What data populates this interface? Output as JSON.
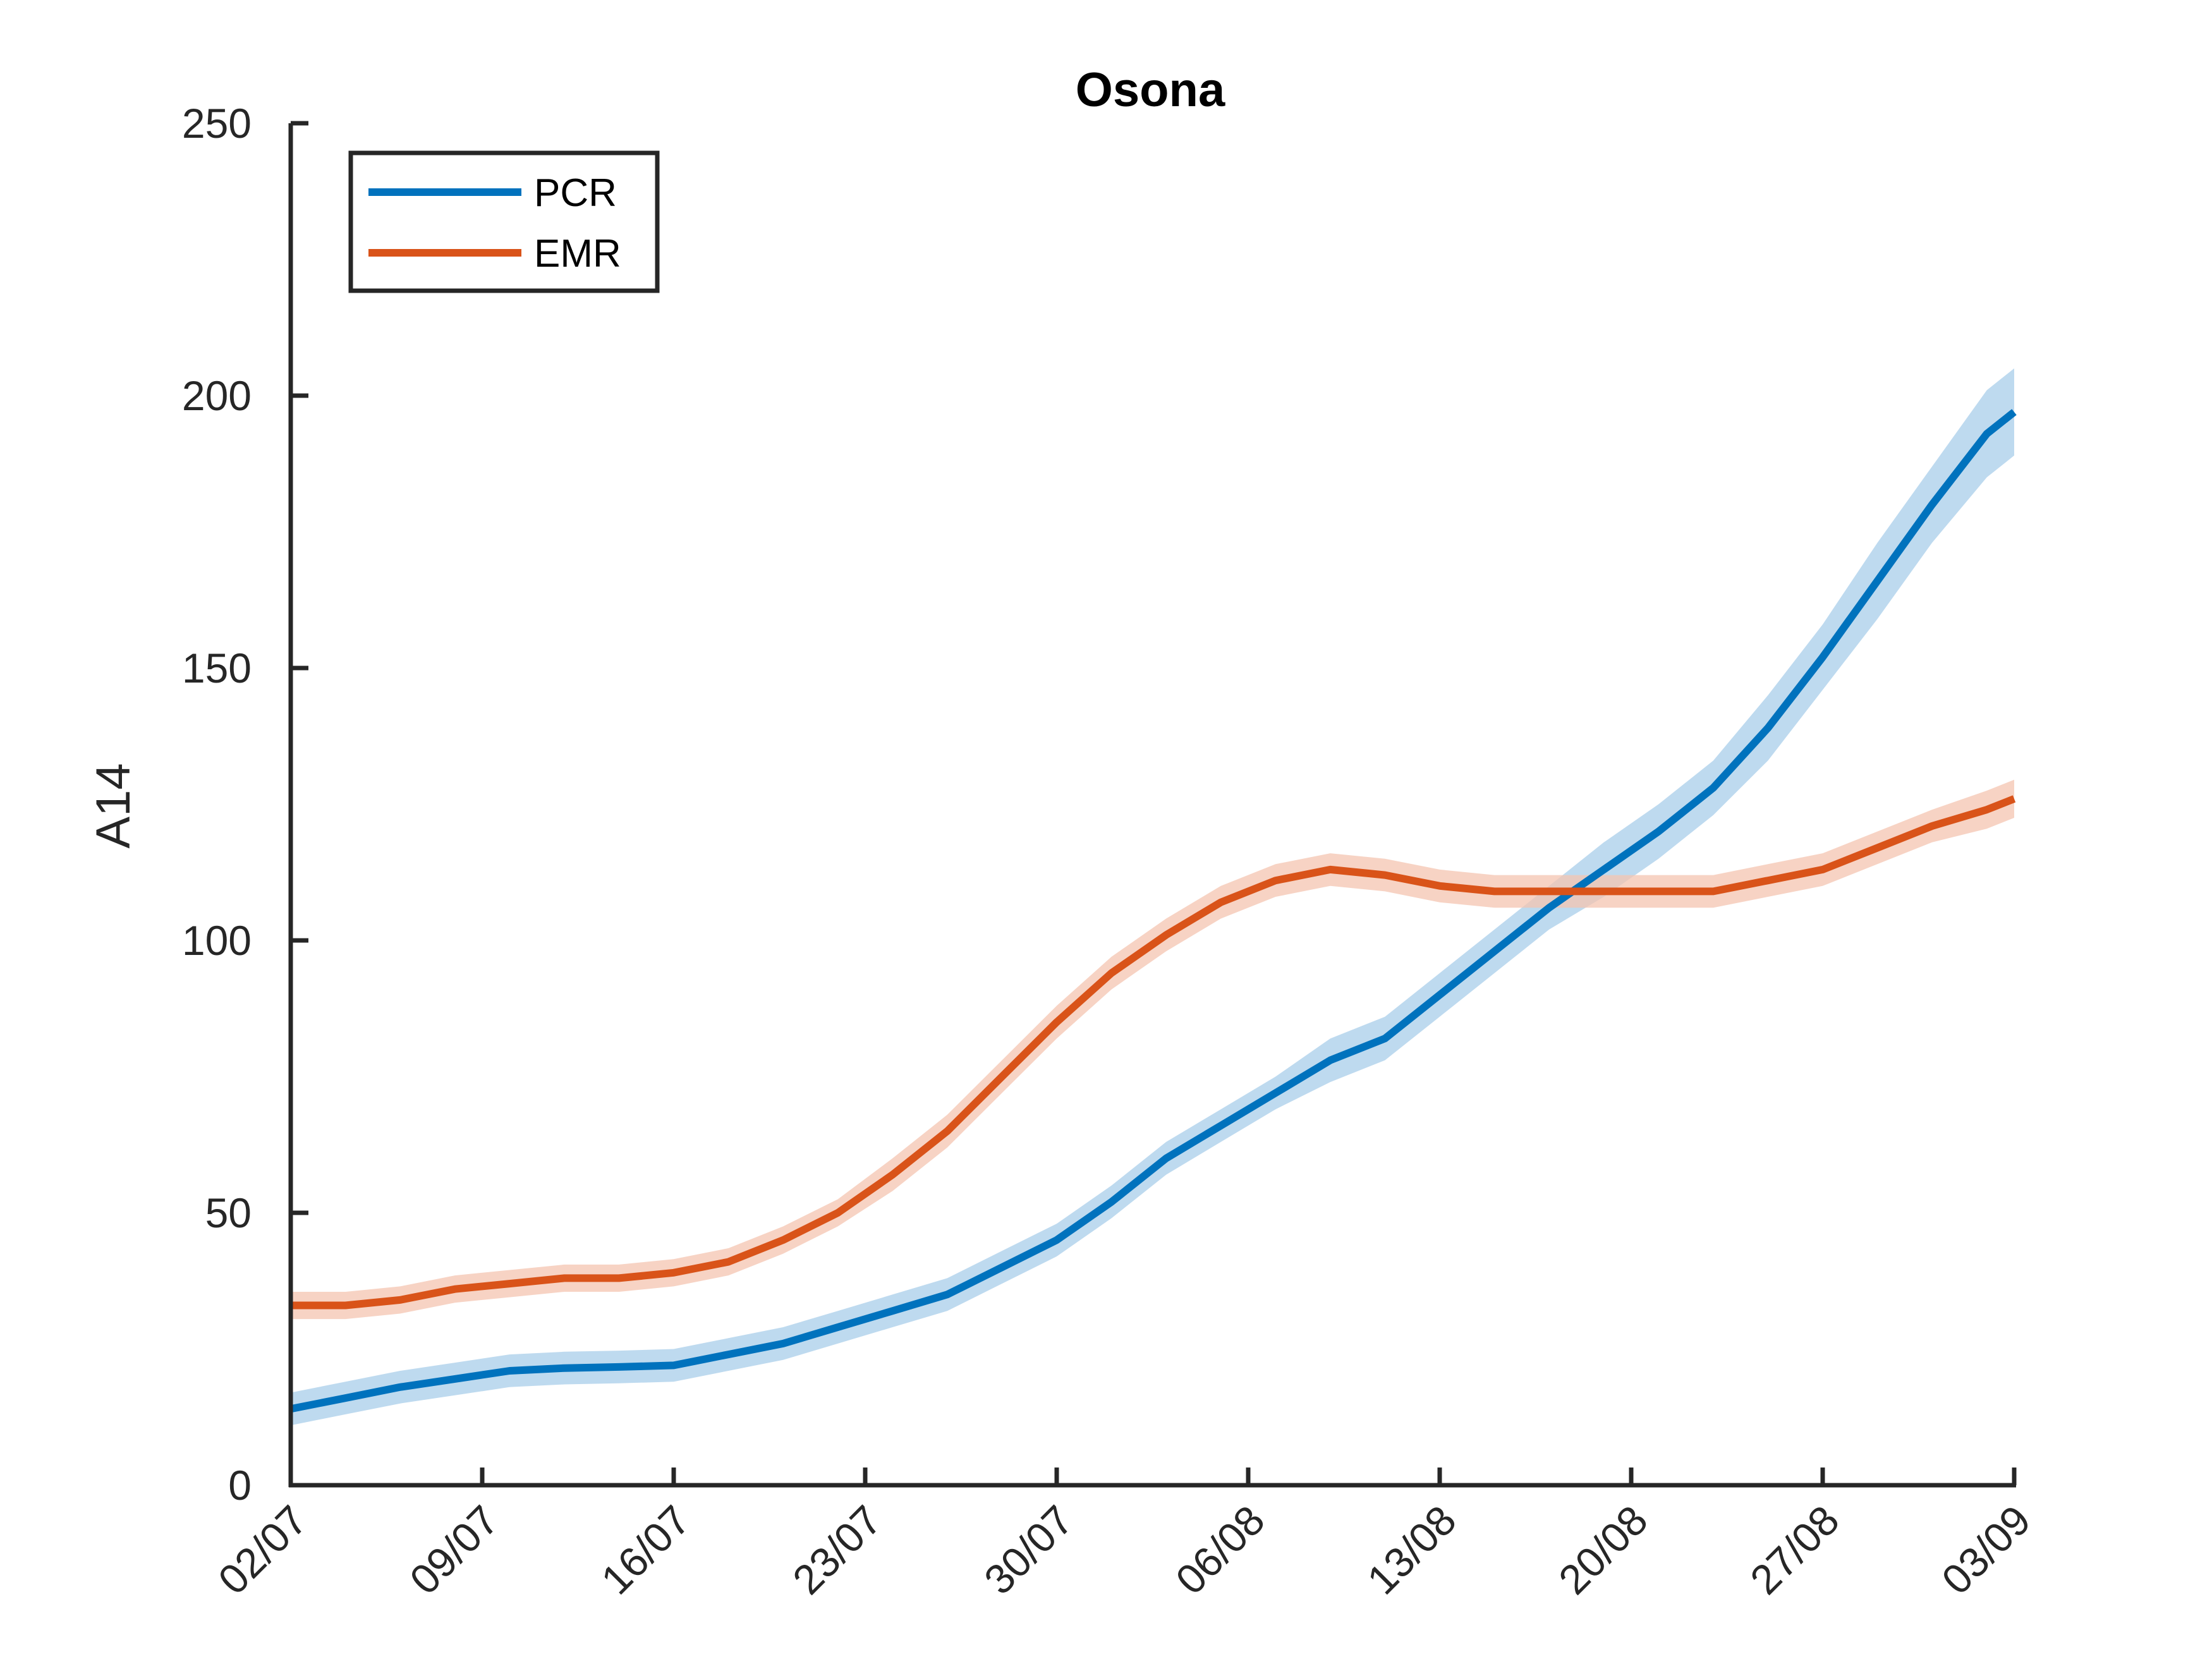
{
  "chart_data": {
    "type": "line",
    "title": "Osona",
    "xlabel": "",
    "ylabel": "A14",
    "xlim": [
      "02/07",
      "03/09"
    ],
    "ylim": [
      0,
      250
    ],
    "yticks": [
      0,
      50,
      100,
      150,
      200,
      250
    ],
    "xticks": [
      "02/07",
      "09/07",
      "16/07",
      "23/07",
      "30/07",
      "06/08",
      "13/08",
      "20/08",
      "27/08",
      "03/09"
    ],
    "grid": false,
    "legend": "top-left",
    "confidence_band": true,
    "series": [
      {
        "name": "PCR",
        "color": "#0072BD",
        "band_color": "#A8CEEA",
        "x": [
          "02/07",
          "04/07",
          "06/07",
          "08/07",
          "10/07",
          "12/07",
          "14/07",
          "16/07",
          "18/07",
          "20/07",
          "22/07",
          "24/07",
          "26/07",
          "28/07",
          "30/07",
          "01/08",
          "03/08",
          "05/08",
          "07/08",
          "09/08",
          "11/08",
          "13/08",
          "15/08",
          "17/08",
          "19/08",
          "21/08",
          "23/08",
          "25/08",
          "27/08",
          "29/08",
          "31/08",
          "02/09",
          "03/09"
        ],
        "y": [
          14,
          16,
          18,
          19.5,
          21,
          21.5,
          21.7,
          22,
          24,
          26,
          29,
          32,
          35,
          40,
          45,
          52,
          60,
          66,
          72,
          78,
          82,
          90,
          98,
          106,
          113,
          120,
          128,
          139,
          152,
          166,
          180,
          193,
          197
        ],
        "band": [
          3,
          3,
          3,
          3,
          3,
          3,
          3,
          3,
          3,
          3,
          3,
          3,
          3,
          3,
          3,
          3,
          3,
          3,
          3,
          4,
          4,
          4,
          4,
          4,
          5,
          5,
          5,
          6,
          6,
          7,
          7,
          8,
          8
        ]
      },
      {
        "name": "EMR",
        "color": "#D95319",
        "band_color": "#F4C4B0",
        "x": [
          "02/07",
          "04/07",
          "06/07",
          "08/07",
          "10/07",
          "12/07",
          "14/07",
          "16/07",
          "18/07",
          "20/07",
          "22/07",
          "24/07",
          "26/07",
          "28/07",
          "30/07",
          "01/08",
          "03/08",
          "05/08",
          "07/08",
          "09/08",
          "11/08",
          "13/08",
          "15/08",
          "17/08",
          "19/08",
          "21/08",
          "23/08",
          "25/08",
          "27/08",
          "29/08",
          "31/08",
          "02/09",
          "03/09"
        ],
        "y": [
          33,
          33,
          34,
          36,
          37,
          38,
          38,
          39,
          41,
          45,
          50,
          57,
          65,
          75,
          85,
          94,
          101,
          107,
          111,
          113,
          112,
          110,
          109,
          109,
          109,
          109,
          109,
          111,
          113,
          117,
          121,
          124,
          126
        ],
        "band": [
          2.5,
          2.5,
          2.5,
          2.5,
          2.5,
          2.5,
          2.5,
          2.5,
          2.5,
          2.5,
          2.5,
          3,
          3,
          3,
          3,
          3,
          3,
          3,
          3,
          3,
          3,
          3,
          3,
          3,
          3,
          3,
          3,
          3,
          3,
          3,
          3,
          3.5,
          3.5
        ]
      }
    ]
  },
  "colors": {
    "axis": "#262626",
    "pcr": "#0072BD",
    "emr": "#D95319"
  }
}
